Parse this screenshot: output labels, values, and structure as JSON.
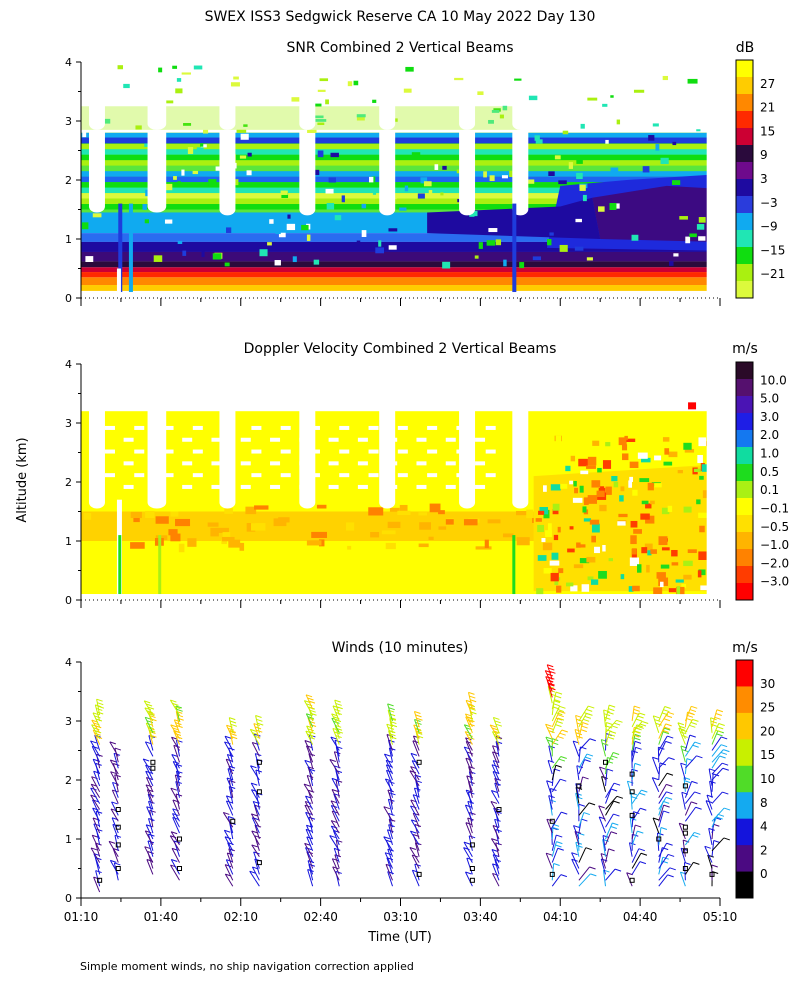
{
  "figure": {
    "title": "SWEX ISS3 Sedgwick Reserve CA  10 May 2022 Day 130",
    "ylabel": "Altitude (km)",
    "xlabel": "Time (UT)",
    "footnote": "Simple moment winds, no ship navigation correction applied"
  },
  "chart_data": [
    {
      "type": "heatmap",
      "title": "SNR Combined 2 Vertical Beams",
      "ylim": [
        0,
        4
      ],
      "yticks": [
        "0",
        "1",
        "2",
        "3",
        "4"
      ],
      "colorbar": {
        "unit": "dB",
        "labels": [
          "27",
          "21",
          "15",
          "9",
          "3",
          "−3",
          "−9",
          "−15",
          "−21"
        ],
        "colors": [
          "#ffff00",
          "#ffcc00",
          "#ff8800",
          "#ff2a00",
          "#cc0033",
          "#2a0a3c",
          "#6e0a8c",
          "#1e0aa0",
          "#2a3cdc",
          "#10aaf0",
          "#20e6b4",
          "#10dd10",
          "#aaf010",
          "#dcfa3c"
        ]
      },
      "layers": [
        {
          "from_km": 0.1,
          "to_km": 0.25,
          "level": "21"
        },
        {
          "from_km": 0.25,
          "to_km": 0.4,
          "level": "15"
        },
        {
          "from_km": 0.4,
          "to_km": 0.55,
          "level": "9"
        },
        {
          "from_km": 0.55,
          "to_km": 0.8,
          "level": "3"
        },
        {
          "from_km": 0.8,
          "to_km": 1.1,
          "level": "−3"
        },
        {
          "from_km": 1.1,
          "to_km": 1.5,
          "level": "−9"
        },
        {
          "from_km": 1.5,
          "to_km": 2.8,
          "level": "−15"
        }
      ]
    },
    {
      "type": "heatmap",
      "title": "Doppler Velocity Combined 2 Vertical Beams",
      "ylim": [
        0,
        4
      ],
      "yticks": [
        "0",
        "1",
        "2",
        "3",
        "4"
      ],
      "colorbar": {
        "unit": "m/s",
        "labels": [
          "10.0",
          "5.0",
          "3.0",
          "2.0",
          "1.0",
          "0.5",
          "0.1",
          "−0.1",
          "−0.5",
          "−1.0",
          "−2.0",
          "−3.0"
        ],
        "colors": [
          "#2a0a28",
          "#55106e",
          "#4a14b4",
          "#1e1ee6",
          "#1478f0",
          "#10dca0",
          "#1edc1e",
          "#aaf014",
          "#ffff00",
          "#ffe000",
          "#ffb400",
          "#ff8200",
          "#ff3c00",
          "#ff0000"
        ]
      },
      "layers": [
        {
          "from_km": 0.1,
          "to_km": 1.0,
          "level": "−0.1"
        },
        {
          "from_km": 1.0,
          "to_km": 1.6,
          "level": "−1.0"
        },
        {
          "from_km": 1.6,
          "to_km": 3.2,
          "level": "−0.1"
        }
      ]
    },
    {
      "type": "scatter",
      "title": "Winds (10 minutes)",
      "ylim": [
        0,
        4
      ],
      "yticks": [
        "0",
        "1",
        "2",
        "3",
        "4"
      ],
      "xticks": [
        "01:10",
        "01:40",
        "02:10",
        "02:40",
        "03:10",
        "03:40",
        "04:10",
        "04:40",
        "05:10"
      ],
      "colorbar": {
        "unit": "m/s",
        "labels": [
          "30",
          "25",
          "20",
          "15",
          "10",
          "8",
          "4",
          "2",
          "0"
        ],
        "colors": [
          "#ff0000",
          "#ff8c00",
          "#ffc800",
          "#c8f000",
          "#50dc28",
          "#14aaf0",
          "#1414dc",
          "#4b0a82",
          "#000000"
        ]
      },
      "profiles": [
        {
          "time": "01:17",
          "bottom_km": 0.1,
          "top_km": 3.1
        },
        {
          "time": "01:24",
          "bottom_km": 0.3,
          "top_km": 2.4
        },
        {
          "time": "01:37",
          "bottom_km": 0.4,
          "top_km": 3.1
        },
        {
          "time": "01:47",
          "bottom_km": 0.3,
          "top_km": 3.1
        },
        {
          "time": "02:07",
          "bottom_km": 0.2,
          "top_km": 2.8
        },
        {
          "time": "02:17",
          "bottom_km": 0.2,
          "top_km": 2.8
        },
        {
          "time": "02:37",
          "bottom_km": 0.2,
          "top_km": 3.2
        },
        {
          "time": "02:47",
          "bottom_km": 0.2,
          "top_km": 3.1
        },
        {
          "time": "03:07",
          "bottom_km": 0.2,
          "top_km": 3.0
        },
        {
          "time": "03:17",
          "bottom_km": 0.2,
          "top_km": 2.9
        },
        {
          "time": "03:37",
          "bottom_km": 0.2,
          "top_km": 3.2
        },
        {
          "time": "03:47",
          "bottom_km": 0.2,
          "top_km": 2.8
        },
        {
          "time": "04:07",
          "bottom_km": 0.2,
          "top_km": 3.7
        },
        {
          "time": "04:17",
          "bottom_km": 0.2,
          "top_km": 3.0
        },
        {
          "time": "04:27",
          "bottom_km": 0.2,
          "top_km": 3.0
        },
        {
          "time": "04:37",
          "bottom_km": 0.2,
          "top_km": 3.0
        },
        {
          "time": "04:47",
          "bottom_km": 0.2,
          "top_km": 3.0
        },
        {
          "time": "04:57",
          "bottom_km": 0.2,
          "top_km": 3.0
        },
        {
          "time": "05:07",
          "bottom_km": 0.2,
          "top_km": 2.9
        }
      ]
    }
  ]
}
